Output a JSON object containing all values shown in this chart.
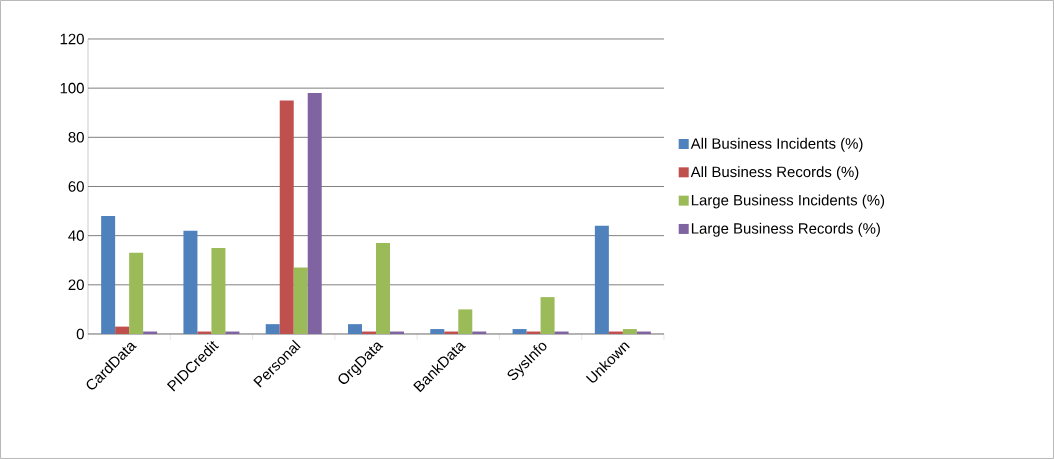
{
  "chart_data": {
    "type": "bar",
    "categories": [
      "CardData",
      "PIDCredit",
      "Personal",
      "OrgData",
      "BankData",
      "SysInfo",
      "Unkown"
    ],
    "series": [
      {
        "name": "All Business Incidents (%)",
        "color": "#4f81bd",
        "values": [
          48,
          42,
          4,
          4,
          2,
          2,
          44
        ]
      },
      {
        "name": "All Business Records (%)",
        "color": "#c0504d",
        "values": [
          3,
          1,
          95,
          1,
          1,
          1,
          1
        ]
      },
      {
        "name": "Large Business Incidents (%)",
        "color": "#9bbb59",
        "values": [
          33,
          35,
          27,
          37,
          10,
          15,
          2
        ]
      },
      {
        "name": "Large Business Records (%)",
        "color": "#8064a2",
        "values": [
          1,
          1,
          98,
          1,
          1,
          1,
          1
        ]
      }
    ],
    "ylim": [
      0,
      120
    ],
    "yticks": [
      0,
      20,
      40,
      60,
      80,
      100,
      120
    ],
    "grid": "y",
    "legend": "right"
  }
}
